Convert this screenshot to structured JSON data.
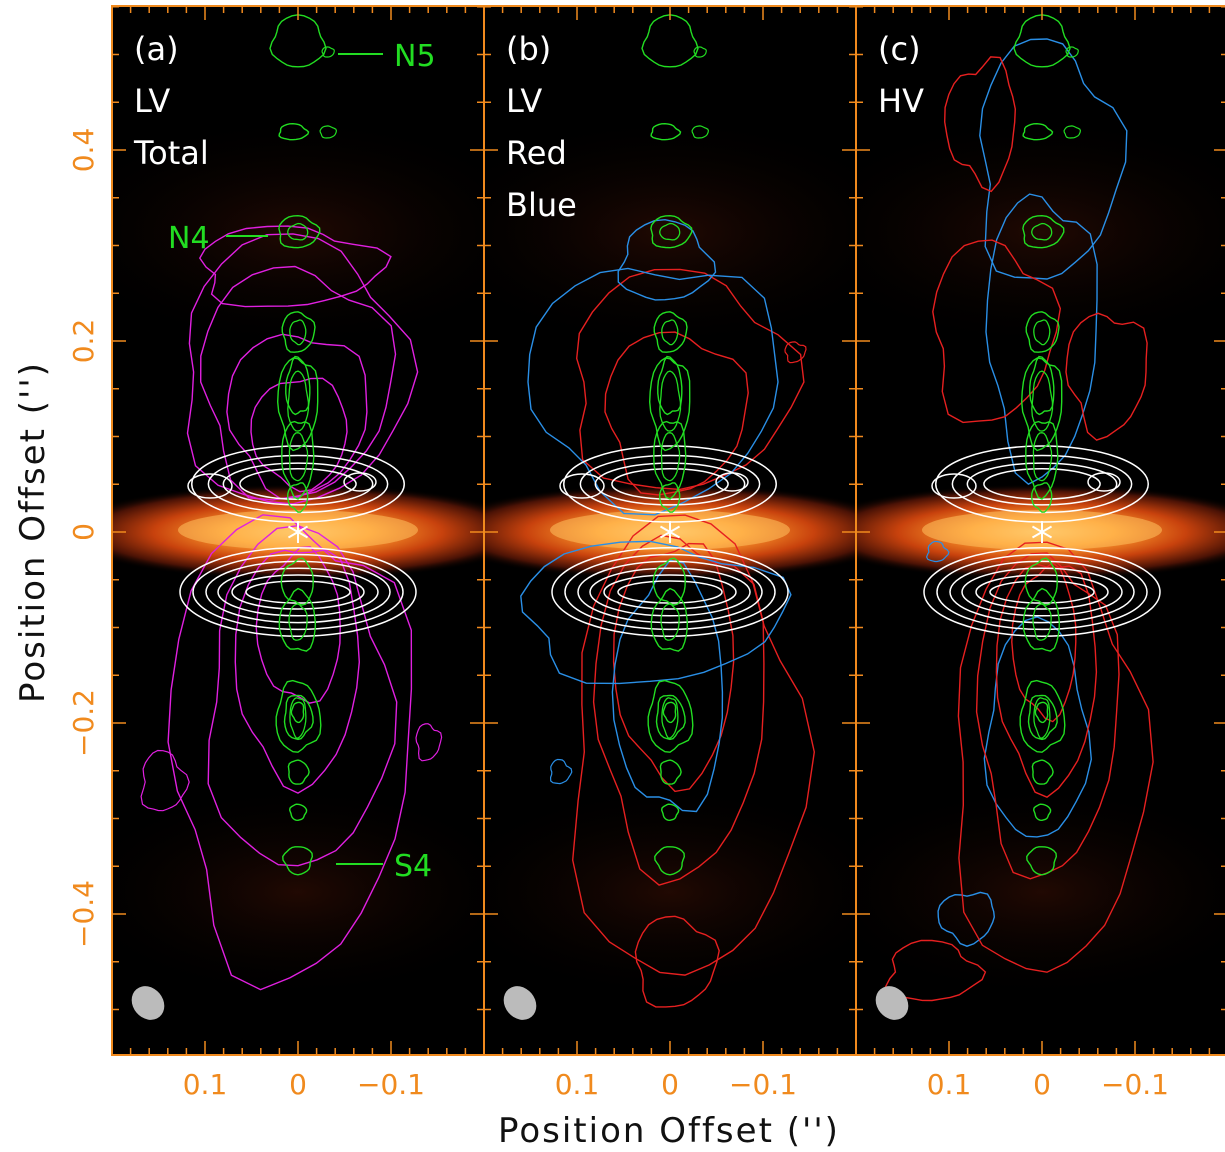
{
  "axes": {
    "xlabel": "Position Offset ('')",
    "ylabel": "Position Offset ('')",
    "x_ticks": [
      "0.1",
      "0",
      "−0.1"
    ],
    "y_ticks": [
      "0.4",
      "0.2",
      "0",
      "−0.2",
      "−0.4"
    ],
    "x_tick_values": [
      0.1,
      0,
      -0.1
    ],
    "y_tick_values": [
      0.4,
      0.2,
      0,
      -0.2,
      -0.4
    ],
    "xlim": [
      0.2,
      -0.2
    ],
    "ylim": [
      -0.55,
      0.55
    ],
    "tick_color": "#f08a1e"
  },
  "panels": [
    {
      "id": "a",
      "tag": "(a)",
      "lines": [
        "LV",
        "Total"
      ],
      "contours": [
        "magenta"
      ]
    },
    {
      "id": "b",
      "tag": "(b)",
      "lines": [
        "LV",
        "Red",
        "Blue"
      ],
      "contours": [
        "red",
        "blue"
      ]
    },
    {
      "id": "c",
      "tag": "(c)",
      "lines": [
        "HV"
      ],
      "contours": [
        "red",
        "blue"
      ]
    }
  ],
  "knots": {
    "N5": "N5",
    "N4": "N4",
    "S4": "S4"
  },
  "colors": {
    "green": "#22dd22",
    "magenta": "#e020e0",
    "red": "#e62020",
    "blue": "#2a8fe6",
    "white": "#ffffff",
    "frame": "#f08a1e",
    "beam": "#bbbbbb"
  }
}
